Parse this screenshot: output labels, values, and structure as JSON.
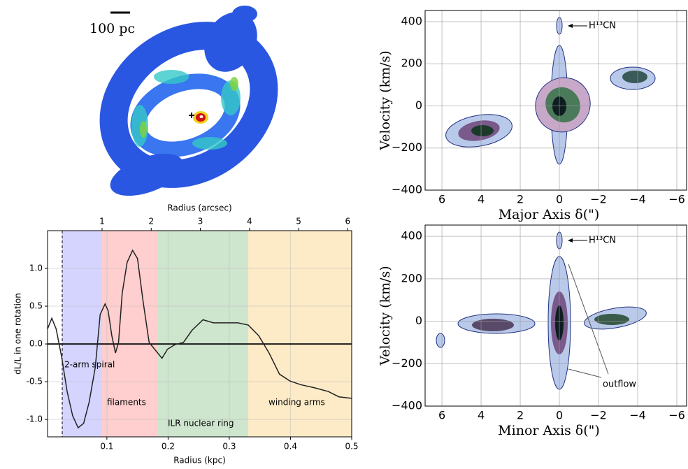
{
  "scale_bar_label": "100 pc",
  "chart_data": [
    {
      "type": "line",
      "x_label": "Radius (kpc)",
      "x2_label": "Radius (arcsec)",
      "y_label": "dL/L in one rotation",
      "xlim": [
        0.003,
        0.5
      ],
      "ylim": [
        -1.23,
        1.5
      ],
      "x2lim": [
        -0.11,
        6.08
      ],
      "xticks": [
        0.1,
        0.2,
        0.3,
        0.4,
        0.5
      ],
      "x2ticks": [
        1,
        2,
        3,
        4,
        5,
        6
      ],
      "yticks": [
        {
          "value": -1,
          "label": "-1.0"
        },
        {
          "value": -0.5,
          "label": "-0.5"
        },
        {
          "value": 0,
          "label": "0.0"
        },
        {
          "value": 0.5,
          "label": "0.5"
        },
        {
          "value": 1,
          "label": "1.0"
        }
      ],
      "grid": true,
      "hline": 0,
      "vline": 0.027,
      "color": "#222222",
      "regions": [
        {
          "start": 0.027,
          "end": 0.092,
          "label": "2-arm spiral",
          "color": "#3a3aff"
        },
        {
          "start": 0.092,
          "end": 0.183,
          "label": "filaments",
          "color": "#ff2020"
        },
        {
          "start": 0.183,
          "end": 0.331,
          "label": "ILR nuclear ring",
          "color": "#1f8a1f"
        },
        {
          "start": 0.331,
          "end": 0.5,
          "label": "winding arms",
          "color": "#f5a000"
        }
      ],
      "x": [
        0.003,
        0.01,
        0.017,
        0.026,
        0.035,
        0.044,
        0.053,
        0.062,
        0.071,
        0.081,
        0.089,
        0.097,
        0.102,
        0.108,
        0.114,
        0.119,
        0.125,
        0.133,
        0.142,
        0.15,
        0.159,
        0.169,
        0.178,
        0.19,
        0.199,
        0.211,
        0.225,
        0.239,
        0.257,
        0.274,
        0.291,
        0.314,
        0.331,
        0.348,
        0.365,
        0.382,
        0.399,
        0.417,
        0.439,
        0.462,
        0.479,
        0.5
      ],
      "values": [
        0.2,
        0.34,
        0.2,
        -0.17,
        -0.63,
        -0.95,
        -1.11,
        -1.05,
        -0.77,
        -0.31,
        0.39,
        0.53,
        0.44,
        0.11,
        -0.12,
        0.02,
        0.67,
        1.08,
        1.24,
        1.13,
        0.57,
        0.02,
        -0.07,
        -0.19,
        -0.07,
        -0.01,
        0.02,
        0.18,
        0.32,
        0.28,
        0.28,
        0.28,
        0.25,
        0.11,
        -0.12,
        -0.4,
        -0.49,
        -0.54,
        -0.58,
        -0.63,
        -0.7,
        -0.72
      ]
    },
    {
      "type": "pv",
      "x_label": "Major Axis  δ(\")",
      "y_label": "Velocity (km/s)",
      "xlim": [
        6.86,
        -6.5
      ],
      "ylim": [
        -400,
        453
      ],
      "grid": true,
      "xticks": [
        6,
        4,
        2,
        0,
        {
          "value": -2,
          "label": "−2"
        },
        {
          "value": -4,
          "label": "−4"
        },
        {
          "value": -6,
          "label": "−6"
        }
      ],
      "yticks": [
        {
          "value": -400,
          "label": "−400"
        },
        {
          "value": -200,
          "label": "−200"
        },
        0,
        200,
        400
      ],
      "annotations": [
        "H¹³CN"
      ]
    },
    {
      "type": "pv",
      "x_label": "Minor Axis  δ(\")",
      "y_label": "Velocity (km/s)",
      "xlim": [
        6.86,
        -6.5
      ],
      "ylim": [
        -400,
        453
      ],
      "grid": true,
      "xticks": [
        6,
        4,
        2,
        0,
        {
          "value": -2,
          "label": "−2"
        },
        {
          "value": -4,
          "label": "−4"
        },
        {
          "value": -6,
          "label": "−6"
        }
      ],
      "yticks": [
        {
          "value": -400,
          "label": "−400"
        },
        {
          "value": -200,
          "label": "−200"
        },
        0,
        200,
        400
      ],
      "annotations": [
        "H¹³CN",
        "outflow"
      ]
    }
  ]
}
